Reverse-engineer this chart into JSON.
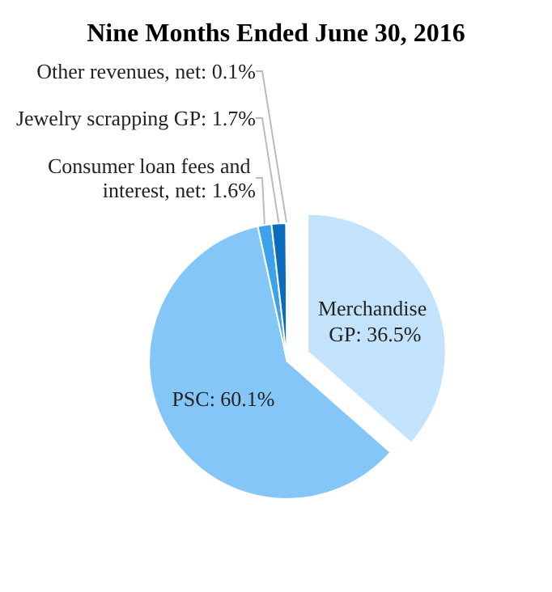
{
  "chart_data": {
    "type": "pie",
    "title": "Nine Months Ended June 30, 2016",
    "categories": [
      "Merchandise GP",
      "PSC",
      "Consumer loan fees and interest, net",
      "Jewelry scrapping GP",
      "Other revenues, net"
    ],
    "values": [
      36.5,
      60.1,
      1.6,
      1.7,
      0.1
    ],
    "value_labels": [
      "36.5%",
      "60.1%",
      "1.6%",
      "1.7%",
      "0.1%"
    ],
    "colors": [
      "#c2e3fb",
      "#84c6f7",
      "#3da2ec",
      "#0b6bbd",
      "#b9dcf5"
    ]
  }
}
